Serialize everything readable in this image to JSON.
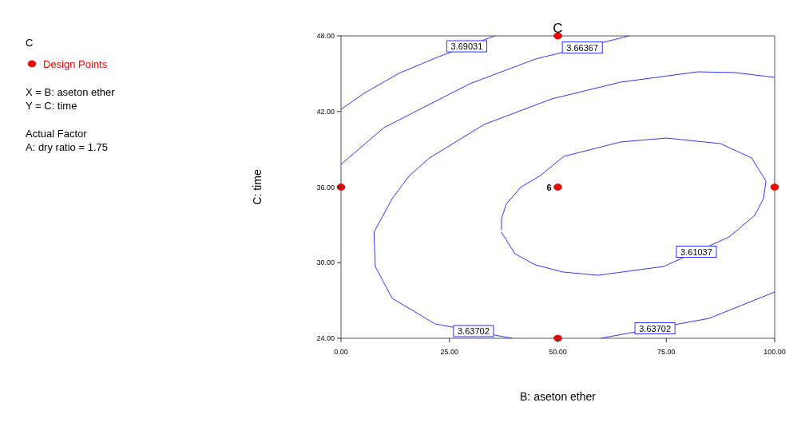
{
  "chart_data": {
    "type": "line",
    "title": "C",
    "xlabel": "B: aseton ether",
    "ylabel": "C: time",
    "legend_title": "C",
    "legend": "left",
    "xlim": [
      0,
      100
    ],
    "ylim": [
      24,
      48
    ],
    "xticks": [
      {
        "value": 0,
        "label": "0.00"
      },
      {
        "value": 25,
        "label": "25.00"
      },
      {
        "value": 50,
        "label": "50.00"
      },
      {
        "value": 75,
        "label": "75.00"
      },
      {
        "value": 100,
        "label": "100.00"
      }
    ],
    "yticks": [
      {
        "value": 24,
        "label": "24.00"
      },
      {
        "value": 30,
        "label": "30.00"
      },
      {
        "value": 36,
        "label": "36.00"
      },
      {
        "value": 42,
        "label": "42.00"
      },
      {
        "value": 48,
        "label": "48.00"
      }
    ],
    "series": [
      {
        "name": "3.69031",
        "color": "#3333ff",
        "x": [
          0,
          5.3,
          13.3,
          22.5,
          35.5
        ],
        "values": [
          42.17,
          43.44,
          45.02,
          46.35,
          48
        ]
      },
      {
        "name": "3.66367",
        "color": "#3333ff",
        "x": [
          0,
          9.9,
          29.7,
          44.8,
          66.5
        ],
        "values": [
          37.8,
          40.72,
          44.2,
          46.16,
          48
        ]
      },
      {
        "name": "3.63702",
        "color": "#3333ff",
        "x": [
          39.4,
          21.7,
          11.8,
          7.9,
          7.6,
          11.8,
          15.8,
          20.4,
          33.0,
          48.6,
          64.5,
          82.3,
          90.8,
          100
        ],
        "values": [
          24,
          25.14,
          27.17,
          29.7,
          32.42,
          35.08,
          36.92,
          38.31,
          40.97,
          43.0,
          44.33,
          45.15,
          45.09,
          44.71
        ]
      },
      {
        "name": "3.63702",
        "color": "#3333ff",
        "x": [
          59.9,
          84.9,
          100
        ],
        "values": [
          24,
          25.58,
          27.67
        ]
      },
      {
        "name": "3.61037",
        "color": "#3333ff",
        "x": [
          37.0,
          40.1,
          44.8,
          51.4,
          59.3,
          74.4,
          89.5,
          95.4,
          97.4,
          98.0,
          94.7,
          87.5,
          75.0,
          64.5,
          51.4,
          46.0,
          41.4,
          38.1,
          37.0,
          37.0
        ],
        "values": [
          32.42,
          30.71,
          29.82,
          29.25,
          29.0,
          29.7,
          32.04,
          33.75,
          35.08,
          36.47,
          38.31,
          39.45,
          39.89,
          39.58,
          38.44,
          36.92,
          35.97,
          34.64,
          33.5,
          32.6
        ]
      },
      {
        "type": "scatter",
        "name": "Design Points",
        "color": "#ff0000",
        "marker": "circle",
        "x": [
          0,
          50,
          50,
          50,
          100
        ],
        "values": [
          36,
          48,
          36,
          24,
          36
        ]
      }
    ],
    "annotations": [
      {
        "text": "6",
        "x": 50,
        "y": 36
      },
      "X = B: aseton ether",
      "Y = C: time",
      "Actual Factor",
      "A: dry ratio = 1.75"
    ]
  }
}
